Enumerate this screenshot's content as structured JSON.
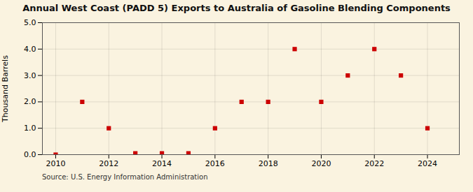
{
  "chart_data": {
    "type": "scatter",
    "title": "Annual West Coast (PADD 5) Exports to Australia of Gasoline Blending Components",
    "ylabel": "Thousand Barrels",
    "source": "Source: U.S. Energy Information Administration",
    "x": [
      2010,
      2011,
      2012,
      2013,
      2014,
      2015,
      2016,
      2017,
      2018,
      2019,
      2020,
      2021,
      2022,
      2023,
      2024
    ],
    "values": [
      0,
      2,
      1,
      0.05,
      0.05,
      0.05,
      1,
      2,
      2,
      4,
      2,
      3,
      4,
      3,
      1
    ],
    "color": "#cc0000",
    "marker": "square",
    "xlim": [
      2009.5,
      2025.2
    ],
    "xticks": [
      2010,
      2012,
      2014,
      2016,
      2018,
      2020,
      2022,
      2024
    ],
    "ylim": [
      0,
      5.0
    ],
    "yticks": [
      {
        "value": 0,
        "label": "0.0"
      },
      {
        "value": 1,
        "label": "1.0"
      },
      {
        "value": 2,
        "label": "2.0"
      },
      {
        "value": 3,
        "label": "3.0"
      },
      {
        "value": 4,
        "label": "4.0"
      },
      {
        "value": 5,
        "label": "5.0"
      }
    ],
    "grid": true
  }
}
